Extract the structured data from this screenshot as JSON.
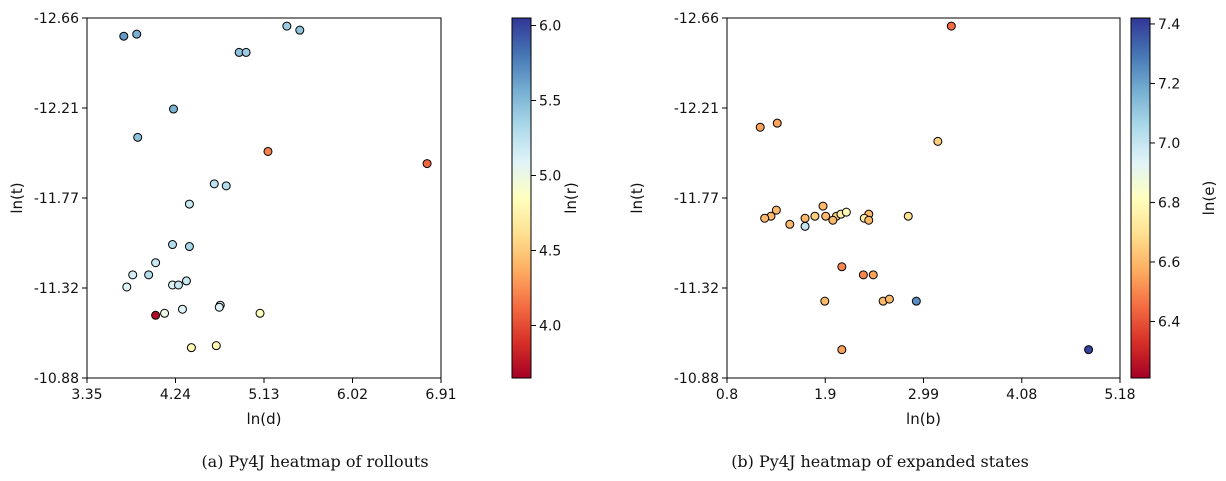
{
  "captions": {
    "a": "(a) Py4J heatmap of rollouts",
    "b": "(b) Py4J heatmap of expanded states"
  },
  "colormap": [
    "#a50026",
    "#d73027",
    "#f46d43",
    "#fdae61",
    "#fee090",
    "#ffffbf",
    "#e0f3f8",
    "#abd9e9",
    "#74add1",
    "#4575b4",
    "#313695"
  ],
  "chart_data": [
    {
      "type": "scatter",
      "title": "",
      "xlabel": "ln(d)",
      "ylabel": "ln(t)",
      "colorbar_label": "ln(r)",
      "xlim": [
        3.35,
        6.91
      ],
      "ylim": [
        -10.88,
        -12.66
      ],
      "y_inverted": true,
      "xticks": [
        "3.35",
        "4.24",
        "5.13",
        "6.02",
        "6.91"
      ],
      "yticks": [
        "-12.66",
        "-12.21",
        "-11.77",
        "-11.32",
        "-10.88"
      ],
      "colorbar_range": [
        3.65,
        6.05
      ],
      "colorbar_ticks": [
        "4.0",
        "4.5",
        "5.0",
        "5.5",
        "6.0"
      ],
      "points": [
        {
          "x": 3.72,
          "y": -12.57,
          "c": 5.65
        },
        {
          "x": 3.85,
          "y": -12.58,
          "c": 5.55
        },
        {
          "x": 5.36,
          "y": -12.62,
          "c": 5.4
        },
        {
          "x": 5.49,
          "y": -12.6,
          "c": 5.45
        },
        {
          "x": 4.88,
          "y": -12.49,
          "c": 5.45
        },
        {
          "x": 4.95,
          "y": -12.49,
          "c": 5.4
        },
        {
          "x": 4.22,
          "y": -12.21,
          "c": 5.55
        },
        {
          "x": 3.86,
          "y": -12.07,
          "c": 5.45
        },
        {
          "x": 5.17,
          "y": -12.0,
          "c": 4.2
        },
        {
          "x": 6.77,
          "y": -11.94,
          "c": 4.1
        },
        {
          "x": 4.63,
          "y": -11.84,
          "c": 5.25
        },
        {
          "x": 4.75,
          "y": -11.83,
          "c": 5.3
        },
        {
          "x": 4.38,
          "y": -11.74,
          "c": 5.2
        },
        {
          "x": 4.21,
          "y": -11.54,
          "c": 5.3
        },
        {
          "x": 4.38,
          "y": -11.53,
          "c": 5.35
        },
        {
          "x": 4.04,
          "y": -11.45,
          "c": 5.2
        },
        {
          "x": 3.81,
          "y": -11.39,
          "c": 5.15
        },
        {
          "x": 3.97,
          "y": -11.39,
          "c": 5.3
        },
        {
          "x": 3.75,
          "y": -11.33,
          "c": 5.1
        },
        {
          "x": 4.35,
          "y": -11.36,
          "c": 5.2
        },
        {
          "x": 4.21,
          "y": -11.34,
          "c": 5.1
        },
        {
          "x": 4.27,
          "y": -11.34,
          "c": 5.2
        },
        {
          "x": 4.69,
          "y": -11.24,
          "c": 5.2
        },
        {
          "x": 4.68,
          "y": -11.23,
          "c": 5.1
        },
        {
          "x": 4.31,
          "y": -11.22,
          "c": 5.1
        },
        {
          "x": 4.13,
          "y": -11.2,
          "c": 5.0
        },
        {
          "x": 4.04,
          "y": -11.19,
          "c": 3.7
        },
        {
          "x": 5.09,
          "y": -11.2,
          "c": 4.85
        },
        {
          "x": 4.4,
          "y": -11.03,
          "c": 4.8
        },
        {
          "x": 4.65,
          "y": -11.04,
          "c": 4.8
        }
      ]
    },
    {
      "type": "scatter",
      "title": "",
      "xlabel": "ln(b)",
      "ylabel": "ln(t)",
      "colorbar_label": "ln(e)",
      "xlim": [
        0.8,
        5.18
      ],
      "ylim": [
        -10.88,
        -12.66
      ],
      "y_inverted": true,
      "xticks": [
        "0.8",
        "1.9",
        "2.99",
        "4.08",
        "5.18"
      ],
      "yticks": [
        "-12.66",
        "-12.21",
        "-11.77",
        "-11.32",
        "-10.88"
      ],
      "colorbar_range": [
        6.21,
        7.42
      ],
      "colorbar_ticks": [
        "6.4",
        "6.6",
        "6.8",
        "7.0",
        "7.2",
        "7.4"
      ],
      "points": [
        {
          "x": 3.3,
          "y": -12.62,
          "c": 6.45
        },
        {
          "x": 1.17,
          "y": -12.12,
          "c": 6.55
        },
        {
          "x": 1.36,
          "y": -12.14,
          "c": 6.55
        },
        {
          "x": 3.15,
          "y": -12.05,
          "c": 6.65
        },
        {
          "x": 1.87,
          "y": -11.73,
          "c": 6.6
        },
        {
          "x": 1.35,
          "y": -11.71,
          "c": 6.6
        },
        {
          "x": 1.29,
          "y": -11.68,
          "c": 6.6
        },
        {
          "x": 1.22,
          "y": -11.67,
          "c": 6.6
        },
        {
          "x": 1.67,
          "y": -11.67,
          "c": 6.6
        },
        {
          "x": 1.78,
          "y": -11.68,
          "c": 6.65
        },
        {
          "x": 1.9,
          "y": -11.68,
          "c": 6.6
        },
        {
          "x": 2.02,
          "y": -11.68,
          "c": 6.65
        },
        {
          "x": 2.07,
          "y": -11.69,
          "c": 6.75
        },
        {
          "x": 2.13,
          "y": -11.7,
          "c": 6.8
        },
        {
          "x": 2.38,
          "y": -11.69,
          "c": 6.6
        },
        {
          "x": 2.82,
          "y": -11.68,
          "c": 6.7
        },
        {
          "x": 2.33,
          "y": -11.67,
          "c": 6.75
        },
        {
          "x": 2.38,
          "y": -11.66,
          "c": 6.6
        },
        {
          "x": 1.98,
          "y": -11.66,
          "c": 6.6
        },
        {
          "x": 1.5,
          "y": -11.64,
          "c": 6.6
        },
        {
          "x": 1.67,
          "y": -11.63,
          "c": 7.0
        },
        {
          "x": 2.08,
          "y": -11.43,
          "c": 6.5
        },
        {
          "x": 2.32,
          "y": -11.39,
          "c": 6.5
        },
        {
          "x": 2.43,
          "y": -11.39,
          "c": 6.55
        },
        {
          "x": 1.89,
          "y": -11.26,
          "c": 6.6
        },
        {
          "x": 2.54,
          "y": -11.26,
          "c": 6.6
        },
        {
          "x": 2.61,
          "y": -11.27,
          "c": 6.6
        },
        {
          "x": 2.91,
          "y": -11.26,
          "c": 7.25
        },
        {
          "x": 2.08,
          "y": -11.02,
          "c": 6.55
        },
        {
          "x": 4.83,
          "y": -11.02,
          "c": 7.4
        }
      ]
    }
  ]
}
